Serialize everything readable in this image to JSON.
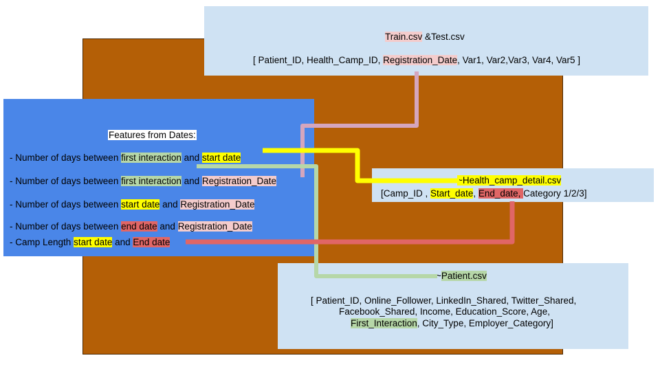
{
  "train": {
    "title_a": "Train.csv",
    "title_b": " &Test.csv",
    "cols_a": "[ Patient_ID, Health_Camp_ID, ",
    "cols_b": "Registration_Date",
    "cols_c": ", Var1, Var2,Var3, Var4, Var5 ]"
  },
  "features": {
    "heading": "Features from Dates:",
    "lines": [
      [
        "- Number of days between ",
        "first interaction",
        " and ",
        "start date"
      ],
      [
        "- Number of days between ",
        "first interaction",
        " and ",
        "Registration_Date"
      ],
      [
        "- Number of days between ",
        "start date",
        " and ",
        "Registration_Date"
      ],
      [
        "- Number of days between ",
        "end date",
        " and ",
        "Registration_Date"
      ],
      [
        "- Camp Length ",
        "start date",
        " and ",
        "End date"
      ]
    ]
  },
  "camp": {
    "title": "~Health_camp_detail.csv",
    "c1": "[Camp_ID , ",
    "c2": "Start_date",
    "c3": ", ",
    "c4": "End_date, ",
    "c5": " Category 1/2/3]"
  },
  "patient": {
    "title_a": "~",
    "title_b": "Patient.csv",
    "row1": "[ Patient_ID, Online_Follower, LinkedIn_Shared, Twitter_Shared,",
    "row2": "Facebook_Shared, Income, Education_Score, Age,",
    "row3_a": "First_Interaction",
    "row3_b": ", City_Type, Employer_Category]"
  },
  "colors": {
    "pink_connector": "#d5a6bd",
    "yellow_connector": "#ffff00",
    "green_connector": "#b6d7a8",
    "red_connector": "#e06666"
  }
}
